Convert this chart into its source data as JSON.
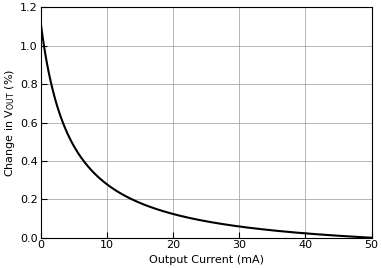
{
  "xlabel": "Output Current (mA)",
  "xlim": [
    0,
    50
  ],
  "ylim": [
    0,
    1.2
  ],
  "xticks": [
    0,
    10,
    20,
    30,
    40,
    50
  ],
  "yticks": [
    0,
    0.2,
    0.4,
    0.6,
    0.8,
    1.0,
    1.2
  ],
  "line_color": "#000000",
  "line_width": 1.5,
  "grid_color": "#999999",
  "background_color": "#ffffff",
  "curve_A": 5.505,
  "curve_B": 4.5,
  "curve_x_end": 50
}
